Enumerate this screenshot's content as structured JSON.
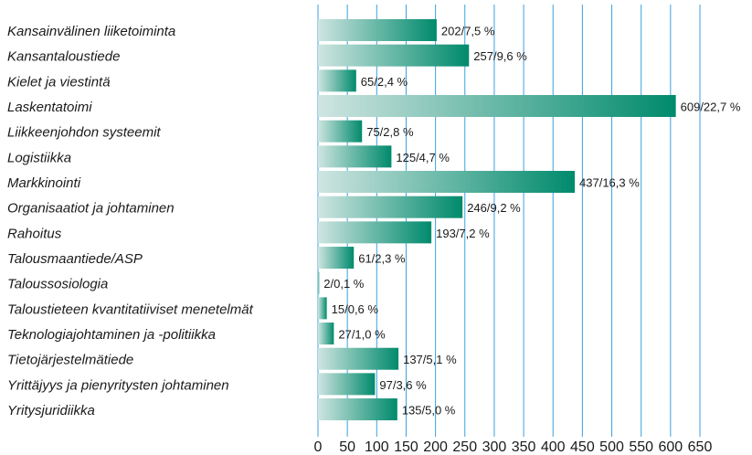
{
  "chart_data": {
    "type": "barh",
    "categories": [
      "Kansainvälinen liiketoiminta",
      "Kansantaloustiede",
      "Kielet ja viestintä",
      "Laskentatoimi",
      "Liikkeenjohdon systeemit",
      "Logistiikka",
      "Markkinointi",
      "Organisaatiot ja johtaminen",
      "Rahoitus",
      "Talousmaantiede/ASP",
      "Taloussosiologia",
      "Taloustieteen kvantitatiiviset menetelmät",
      "Teknologiajohtaminen ja -politiikka",
      "Tietojärjestelmätiede",
      "Yrittäjyys ja pienyritysten johtaminen",
      "Yritysjuridiikka"
    ],
    "values": [
      202,
      257,
      65,
      609,
      75,
      125,
      437,
      246,
      193,
      61,
      2,
      15,
      27,
      137,
      97,
      135
    ],
    "value_labels": [
      "202/7,5 %",
      "257/9,6 %",
      "65/2,4 %",
      "609/22,7 %",
      "75/2,8 %",
      "125/4,7 %",
      "437/16,3 %",
      "246/9,2 %",
      "193/7,2 %",
      "61/2,3 %",
      "2/0,1 %",
      "15/0,6 %",
      "27/1,0 %",
      "137/5,1 %",
      "97/3,6 %",
      "135/5,0 %"
    ],
    "color": "#008a6c",
    "xlim": [
      0,
      650
    ],
    "xticks": [
      0,
      50,
      100,
      150,
      200,
      250,
      300,
      350,
      400,
      450,
      500,
      550,
      600,
      650
    ],
    "grid": true
  }
}
